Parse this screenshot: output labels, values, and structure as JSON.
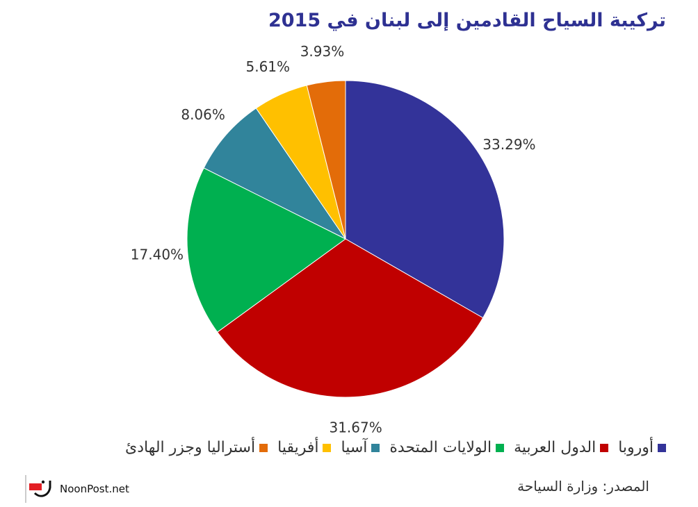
{
  "title": "تركيبة السياح القادمين إلى لبنان في 2015",
  "chart_data": {
    "type": "pie",
    "title": "تركيبة السياح القادمين إلى لبنان في 2015",
    "start_angle_deg": 0,
    "direction": "clockwise",
    "slices": [
      {
        "name": "أوروبا",
        "value": 33.29,
        "label": "33.29%",
        "color": "#333399"
      },
      {
        "name": "الدول العربية",
        "value": 31.67,
        "label": "31.67%",
        "color": "#c00000"
      },
      {
        "name": "الولايات المتحدة",
        "value": 17.4,
        "label": "17.40%",
        "color": "#00b050"
      },
      {
        "name": "آسيا",
        "value": 8.06,
        "label": "8.06%",
        "color": "#31849b"
      },
      {
        "name": "أفريقيا",
        "value": 5.61,
        "label": "5.61%",
        "color": "#ffc000"
      },
      {
        "name": "أستراليا وجزر الهادئ",
        "value": 3.93,
        "label": "3.93%",
        "color": "#e36c09"
      }
    ],
    "legend_position": "bottom"
  },
  "source": "المصدر: وزارة السياحة",
  "brand": {
    "text": "NoonPost.net",
    "logo_color": "#e31e24"
  }
}
